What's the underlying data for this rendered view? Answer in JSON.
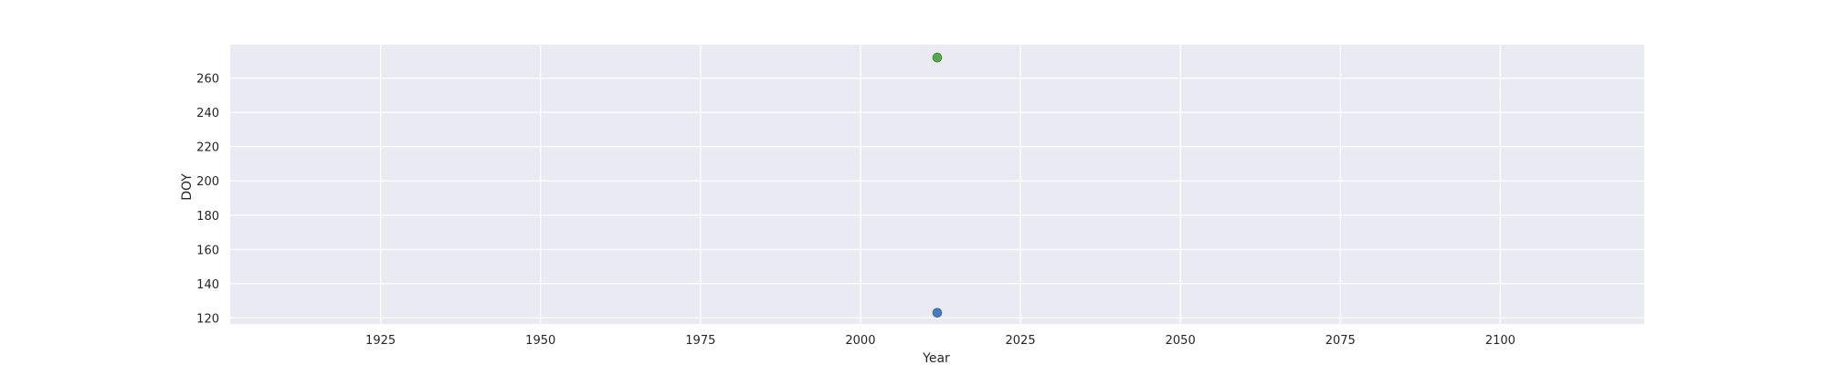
{
  "chart_data": {
    "type": "scatter",
    "title": "",
    "xlabel": "Year",
    "ylabel": "DOY",
    "xlim": [
      1901.5,
      2122.5
    ],
    "ylim": [
      116.5,
      279.5
    ],
    "xticks": [
      1925,
      1950,
      1975,
      2000,
      2025,
      2050,
      2075,
      2100
    ],
    "yticks": [
      120,
      140,
      160,
      180,
      200,
      220,
      240,
      260
    ],
    "grid": true,
    "legend": "none",
    "series": [
      {
        "color": "#3a7dc9",
        "points": [
          {
            "x": 2012,
            "y": 123
          }
        ]
      },
      {
        "color": "#4caf43",
        "points": [
          {
            "x": 2012,
            "y": 272
          }
        ]
      }
    ]
  },
  "colors": {
    "plot_background": "#eaeaf2",
    "grid": "#ffffff",
    "text": "#262626"
  }
}
